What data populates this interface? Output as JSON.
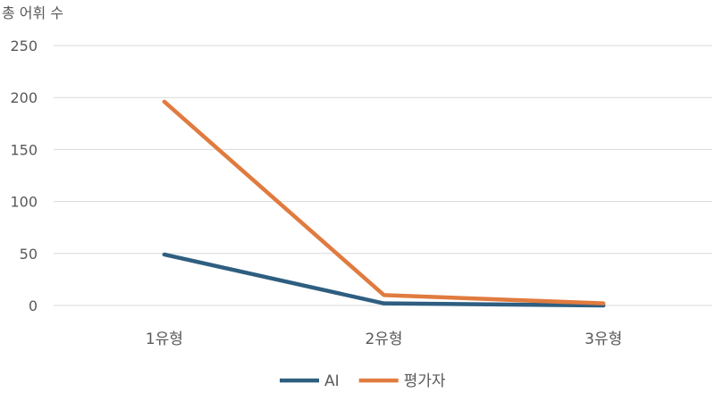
{
  "chart_data": {
    "type": "line",
    "title": "",
    "ylabel": "총 어휘 수",
    "xlabel": "",
    "categories": [
      "1유형",
      "2유형",
      "3유형"
    ],
    "ylim": [
      0,
      250
    ],
    "yticks": [
      0,
      50,
      100,
      150,
      200,
      250
    ],
    "grid": true,
    "legend": "bottom",
    "series": [
      {
        "name": "AI",
        "color": "#2e5e80",
        "values": [
          49,
          2,
          0
        ]
      },
      {
        "name": "평가자",
        "color": "#e07b3f",
        "values": [
          196,
          10,
          2
        ]
      }
    ]
  }
}
